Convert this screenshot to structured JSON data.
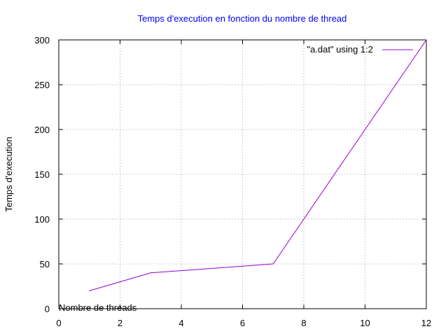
{
  "chart_data": {
    "type": "line",
    "title": "Temps d'execution en fonction du nombre de thread",
    "xlabel": "Nombre de threads",
    "ylabel": "Temps d'execution",
    "xlim": [
      0,
      12
    ],
    "ylim": [
      0,
      300
    ],
    "xticks": [
      0,
      2,
      4,
      6,
      8,
      10,
      12
    ],
    "yticks": [
      0,
      50,
      100,
      150,
      200,
      250,
      300
    ],
    "grid": true,
    "legend_position": "top-right",
    "series": [
      {
        "name": "\"a.dat\" using 1:2",
        "color": "#9400d3",
        "x": [
          1,
          2,
          3,
          7,
          12
        ],
        "y": [
          20,
          30,
          40,
          50,
          300
        ]
      }
    ]
  },
  "colors": {
    "title": "#0000ff",
    "grid": "#a0a0a0",
    "axes": "#000000"
  }
}
